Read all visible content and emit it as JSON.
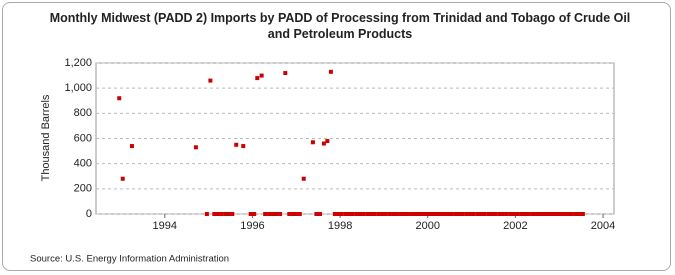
{
  "chart_data": {
    "type": "scatter",
    "title": "Monthly Midwest (PADD 2) Imports by PADD of Processing from Trinidad and Tobago of Crude Oil and Petroleum Products",
    "y_label": "Thousand Barrels",
    "source": "Source: U.S. Energy Information Administration",
    "color": "#cc0000",
    "grid": true,
    "xlim": [
      1992.43,
      2004.25
    ],
    "xticks": [
      1994,
      1996,
      1998,
      2000,
      2002,
      2004
    ],
    "ylim": [
      0,
      1200
    ],
    "yticks": [
      0,
      200,
      400,
      600,
      800,
      {
        "value": 1000,
        "label": "1,000"
      },
      {
        "value": 1200,
        "label": "1,200"
      }
    ],
    "x": [
      1992.96,
      1993.04,
      1993.25,
      1994.71,
      1994.96,
      1995.04,
      1995.13,
      1995.21,
      1995.29,
      1995.38,
      1995.46,
      1995.54,
      1995.63,
      1995.79,
      1995.96,
      1996.04,
      1996.11,
      1996.21,
      1996.29,
      1996.38,
      1996.46,
      1996.54,
      1996.63,
      1996.75,
      1996.84,
      1996.92,
      1997.0,
      1997.08,
      1997.17,
      1997.38,
      1997.46,
      1997.54,
      1997.63,
      1997.71,
      1997.79,
      1997.88,
      1997.96,
      1998.04,
      1998.13,
      1998.21,
      1998.29,
      1998.38,
      1998.46,
      1998.54,
      1998.63,
      1998.71,
      1998.79,
      1998.88,
      1998.96,
      1999.04,
      1999.13,
      1999.21,
      1999.29,
      1999.38,
      1999.46,
      1999.54,
      1999.63,
      1999.71,
      1999.79,
      1999.88,
      1999.96,
      2000.04,
      2000.13,
      2000.21,
      2000.29,
      2000.38,
      2000.46,
      2000.54,
      2000.63,
      2000.71,
      2000.79,
      2000.88,
      2000.96,
      2001.04,
      2001.13,
      2001.21,
      2001.29,
      2001.38,
      2001.46,
      2001.54,
      2001.63,
      2001.71,
      2001.79,
      2001.88,
      2001.96,
      2002.04,
      2002.13,
      2002.21,
      2002.29,
      2002.38,
      2002.46,
      2002.54,
      2002.63,
      2002.71,
      2002.79,
      2002.88,
      2002.96,
      2003.04,
      2003.13,
      2003.21,
      2003.29,
      2003.38,
      2003.46,
      2003.54
    ],
    "values": [
      920,
      280,
      540,
      530,
      0,
      1060,
      0,
      0,
      0,
      0,
      0,
      0,
      550,
      540,
      0,
      0,
      1080,
      1100,
      0,
      0,
      0,
      0,
      0,
      1120,
      0,
      0,
      0,
      0,
      280,
      570,
      0,
      0,
      560,
      580,
      1130,
      0,
      0,
      0,
      0,
      0,
      0,
      0,
      0,
      0,
      0,
      0,
      0,
      0,
      0,
      0,
      0,
      0,
      0,
      0,
      0,
      0,
      0,
      0,
      0,
      0,
      0,
      0,
      0,
      0,
      0,
      0,
      0,
      0,
      0,
      0,
      0,
      0,
      0,
      0,
      0,
      0,
      0,
      0,
      0,
      0,
      0,
      0,
      0,
      0,
      0,
      0,
      0,
      0,
      0,
      0,
      0,
      0,
      0,
      0,
      0,
      0,
      0,
      0,
      0,
      0,
      0,
      0,
      0,
      0
    ]
  }
}
